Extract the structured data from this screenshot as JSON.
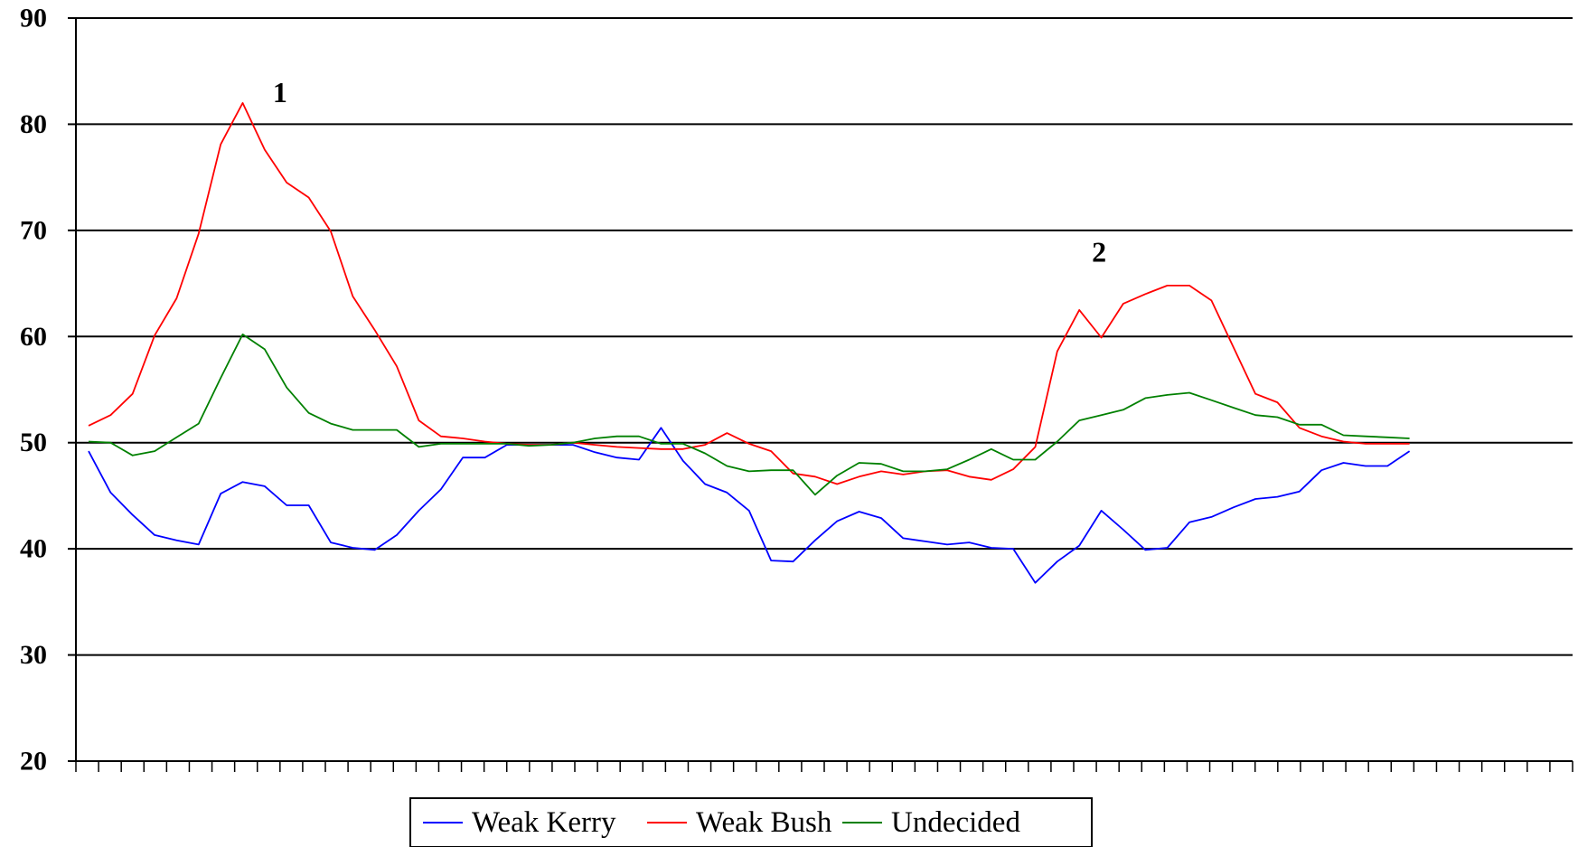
{
  "chart_data": {
    "type": "line",
    "title": "",
    "xlabel": "",
    "ylabel": "",
    "ylim": [
      20,
      90
    ],
    "yticks": [
      20,
      30,
      40,
      50,
      60,
      70,
      80,
      90
    ],
    "x_tick_count": 66,
    "grid": "horizontal",
    "legend_position": "bottom",
    "annotations": [
      {
        "text": "1",
        "x": 8.7,
        "y": 83
      },
      {
        "text": "2",
        "x": 45.9,
        "y": 68
      }
    ],
    "series": [
      {
        "name": "Weak Kerry",
        "color": "#0000ff",
        "values": [
          49.2,
          45.3,
          43.2,
          41.3,
          40.8,
          40.4,
          45.2,
          46.3,
          45.9,
          44.1,
          44.1,
          40.6,
          40.1,
          39.9,
          41.3,
          43.6,
          45.6,
          48.6,
          48.6,
          49.8,
          49.8,
          49.8,
          49.8,
          49.1,
          48.6,
          48.4,
          51.4,
          48.3,
          46.1,
          45.3,
          43.6,
          38.9,
          38.8,
          40.8,
          42.6,
          43.5,
          42.9,
          41.0,
          40.7,
          40.4,
          40.6,
          40.1,
          40.0,
          36.8,
          38.8,
          40.3,
          43.6,
          41.8,
          39.9,
          40.1,
          42.5,
          43.0,
          43.9,
          44.7,
          44.9,
          45.4,
          47.4,
          48.1,
          47.8,
          47.8,
          49.2
        ]
      },
      {
        "name": "Weak Bush",
        "color": "#ff0000",
        "values": [
          51.6,
          52.6,
          54.6,
          60.1,
          63.6,
          69.7,
          78.1,
          82.0,
          77.6,
          74.5,
          73.1,
          69.9,
          63.8,
          60.6,
          57.2,
          52.1,
          50.6,
          50.4,
          50.1,
          49.9,
          49.8,
          49.8,
          50.0,
          49.8,
          49.6,
          49.5,
          49.4,
          49.4,
          49.8,
          50.9,
          49.9,
          49.2,
          47.1,
          46.8,
          46.1,
          46.8,
          47.3,
          47.0,
          47.3,
          47.4,
          46.8,
          46.5,
          47.5,
          49.6,
          58.6,
          62.5,
          59.9,
          63.1,
          64.0,
          64.8,
          64.8,
          63.4,
          59.0,
          54.6,
          53.8,
          51.4,
          50.6,
          50.1,
          49.9,
          49.9,
          49.9
        ]
      },
      {
        "name": "Undecided",
        "color": "#008000",
        "values": [
          50.1,
          50.0,
          48.8,
          49.2,
          50.5,
          51.8,
          56.1,
          60.2,
          58.8,
          55.2,
          52.8,
          51.8,
          51.2,
          51.2,
          51.2,
          49.6,
          49.9,
          49.9,
          49.9,
          49.9,
          49.7,
          49.8,
          50.0,
          50.4,
          50.6,
          50.6,
          49.9,
          49.9,
          49.0,
          47.8,
          47.3,
          47.4,
          47.4,
          45.1,
          46.9,
          48.1,
          48.0,
          47.3,
          47.3,
          47.5,
          48.4,
          49.4,
          48.4,
          48.4,
          50.1,
          52.1,
          52.6,
          53.1,
          54.2,
          54.5,
          54.7,
          54.0,
          53.3,
          52.6,
          52.4,
          51.7,
          51.7,
          50.7,
          50.6,
          50.5,
          50.4
        ]
      }
    ]
  }
}
